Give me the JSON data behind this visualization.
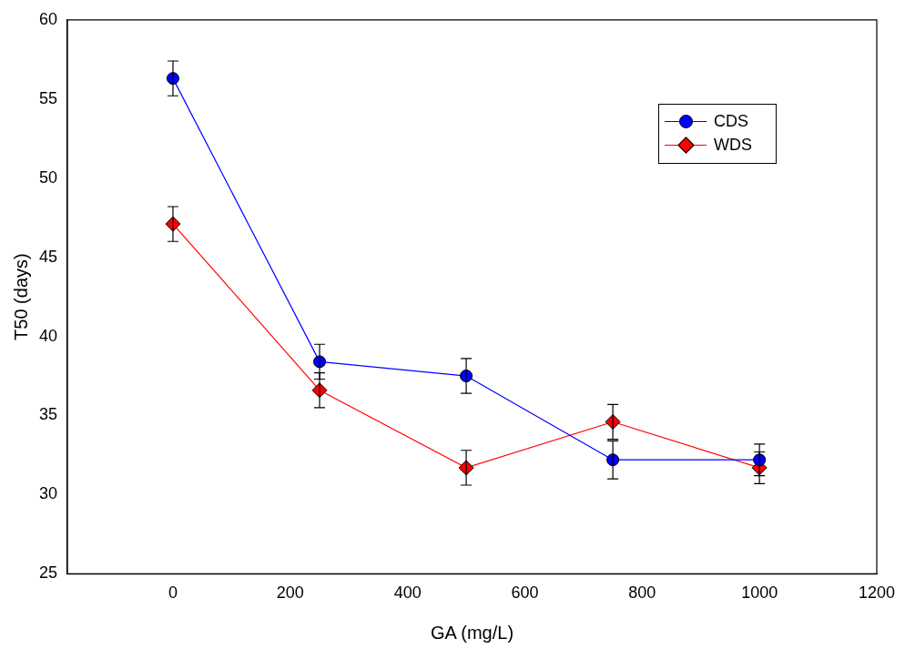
{
  "chart_data": {
    "type": "line",
    "xlabel": "GA (mg/L)",
    "ylabel": "T50 (days)",
    "x": [
      0,
      250,
      500,
      750,
      1000
    ],
    "series": [
      {
        "name": "CDS",
        "color": "#0000ff",
        "marker": "circle",
        "values": [
          56.3,
          38.4,
          37.5,
          32.2,
          32.2
        ],
        "errors": [
          1.1,
          1.1,
          1.1,
          1.2,
          1.0
        ]
      },
      {
        "name": "WDS",
        "color": "#ff0000",
        "marker": "diamond",
        "values": [
          47.1,
          36.6,
          31.7,
          34.6,
          31.7
        ],
        "errors": [
          1.1,
          1.1,
          1.1,
          1.1,
          1.0
        ]
      }
    ],
    "xlim": [
      -180,
      1200
    ],
    "xticks": [
      0,
      200,
      400,
      600,
      800,
      1000,
      1200
    ],
    "ylim": [
      25,
      60
    ],
    "yticks": [
      25,
      30,
      35,
      40,
      45,
      50,
      55,
      60
    ],
    "grid": false,
    "legend": "top right",
    "line_style": "solid"
  }
}
